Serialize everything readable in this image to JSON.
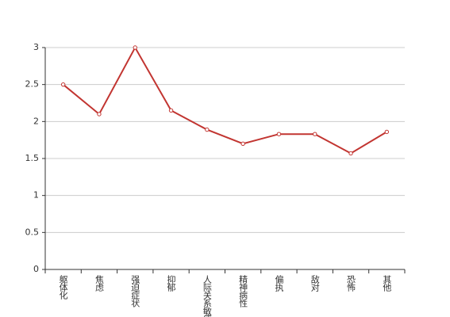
{
  "chart_data": {
    "type": "line",
    "categories": [
      "躯体化",
      "焦虑",
      "强迫症状",
      "抑郁",
      "人际关系敏感",
      "精神病性",
      "偏执",
      "敌对",
      "恐怖",
      "其他"
    ],
    "values": [
      2.5,
      2.1,
      3.0,
      2.15,
      1.89,
      1.7,
      1.83,
      1.83,
      1.57,
      1.86
    ],
    "color": "#c23531",
    "ylim": [
      0,
      3
    ],
    "yticks": [
      0,
      0.5,
      1,
      1.5,
      2,
      2.5,
      3
    ],
    "grid": true
  }
}
